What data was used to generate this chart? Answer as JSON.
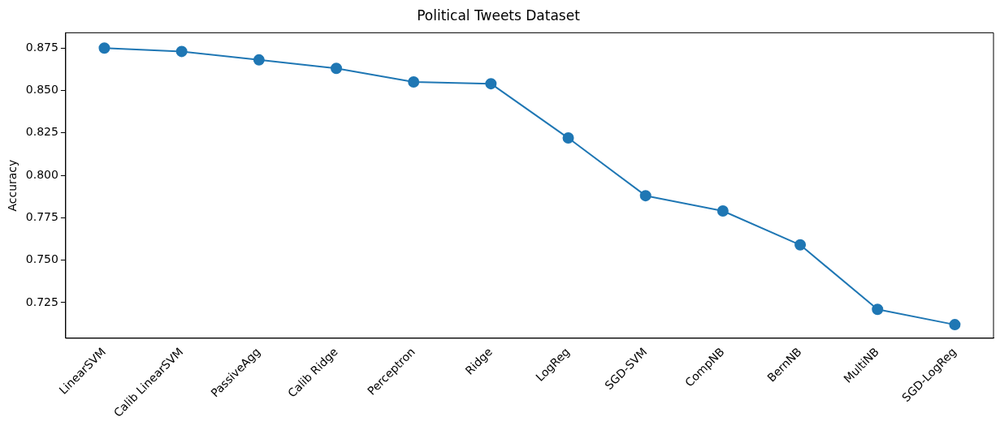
{
  "chart_data": {
    "type": "line",
    "title": "Political Tweets Dataset",
    "ylabel": "Accuracy",
    "categories": [
      "LinearSVM",
      "Calib LinearSVM",
      "PassiveAgg",
      "Calib Ridge",
      "Perceptron",
      "Ridge",
      "LogReg",
      "SGD-SVM",
      "CompNB",
      "BernNB",
      "MultiNB",
      "SGD-LogReg"
    ],
    "series": [
      {
        "color": "#1f77b4",
        "values": [
          0.875,
          0.873,
          0.868,
          0.863,
          0.855,
          0.854,
          0.822,
          0.788,
          0.779,
          0.759,
          0.721,
          0.712
        ]
      }
    ],
    "ylim": [
      0.704,
      0.884
    ],
    "yticks": [
      {
        "value": 0.725,
        "label": "0.725"
      },
      {
        "value": 0.75,
        "label": "0.750"
      },
      {
        "value": 0.775,
        "label": "0.775"
      },
      {
        "value": 0.8,
        "label": "0.800"
      },
      {
        "value": 0.825,
        "label": "0.825"
      },
      {
        "value": 0.85,
        "label": "0.850"
      },
      {
        "value": 0.875,
        "label": "0.875"
      }
    ],
    "marker": "circle",
    "line_style": "solid",
    "grid": false,
    "legend": false
  }
}
